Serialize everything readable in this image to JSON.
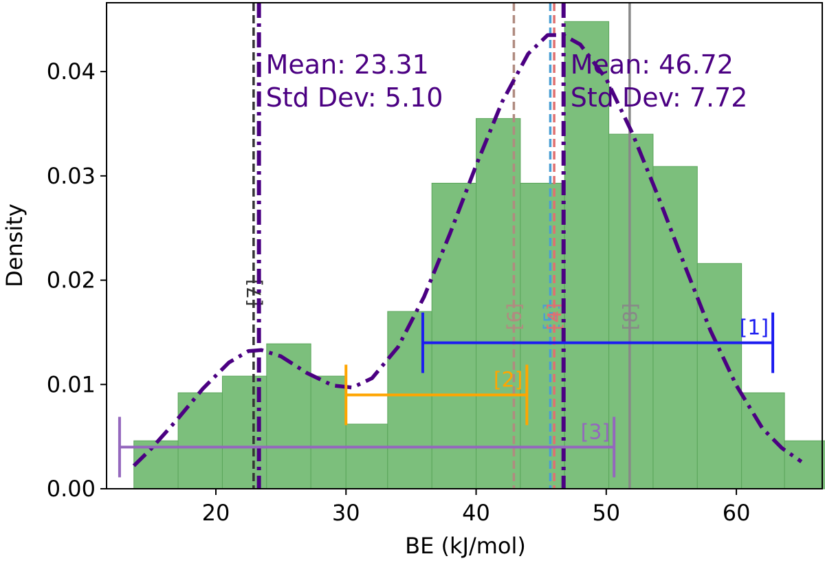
{
  "chart_data": {
    "type": "bar",
    "xlabel": "BE (kJ/mol)",
    "ylabel": "Density",
    "xlim": [
      11.6,
      66.6
    ],
    "ylim": [
      0,
      0.0466
    ],
    "x_ticks": [
      20,
      30,
      40,
      50,
      60
    ],
    "y_ticks": [
      0.0,
      0.01,
      0.02,
      0.03,
      0.04
    ],
    "y_tick_labels": [
      "0.00",
      "0.01",
      "0.02",
      "0.03",
      "0.04"
    ],
    "grid": false,
    "histogram": {
      "color": "#7cbf7c",
      "edge_color": "#5aa55a",
      "bin_edges": [
        13.7,
        17.1,
        20.5,
        23.9,
        27.3,
        30.0,
        33.2,
        36.6,
        40.0,
        43.4,
        46.8,
        50.2,
        53.6,
        57.0,
        60.4,
        63.7,
        67.1
      ],
      "values": [
        0.0046,
        0.0092,
        0.0108,
        0.0139,
        0.0108,
        0.0062,
        0.017,
        0.0293,
        0.0355,
        0.0293,
        0.0448,
        0.034,
        0.0309,
        0.0216,
        0.0092,
        0.0046
      ]
    },
    "kde": {
      "color": "#4b0082",
      "x": [
        13.7,
        15,
        17,
        19,
        21,
        22.5,
        23.5,
        25,
        27,
        29,
        30.5,
        32,
        34,
        36,
        38,
        40,
        42,
        44,
        45.5,
        46.7,
        48,
        50,
        52,
        54,
        56,
        58,
        60,
        62,
        63.5,
        65
      ],
      "y": [
        0.0022,
        0.0038,
        0.0066,
        0.0096,
        0.0121,
        0.0132,
        0.0133,
        0.0127,
        0.0111,
        0.0099,
        0.0097,
        0.0106,
        0.0136,
        0.0184,
        0.0245,
        0.031,
        0.0371,
        0.0417,
        0.0435,
        0.0435,
        0.0426,
        0.0393,
        0.0341,
        0.028,
        0.0215,
        0.0152,
        0.0099,
        0.0058,
        0.0039,
        0.0026
      ]
    },
    "mean_lines": [
      {
        "x": 23.31,
        "label_mean": "Mean: 23.31",
        "label_std": "Std Dev: 5.10",
        "color": "#4b0082"
      },
      {
        "x": 46.72,
        "label_mean": "Mean: 46.72",
        "label_std": "Std Dev: 7.72",
        "color": "#4b0082"
      }
    ],
    "reference_lines": [
      {
        "label": "[7]",
        "x": 22.9,
        "color": "#333333",
        "style": "dashed",
        "label_y": 0.0188
      },
      {
        "label": "[6]",
        "x": 42.9,
        "color": "#b08b80",
        "style": "dashed",
        "label_y": 0.0165
      },
      {
        "label": "[5]",
        "x": 45.7,
        "color": "#4a9fd4",
        "style": "dashed",
        "label_y": 0.0165
      },
      {
        "label": "[4]",
        "x": 46.0,
        "color": "#e07070",
        "style": "dashed",
        "label_y": 0.0165
      },
      {
        "label": "[8]",
        "x": 51.8,
        "color": "#888888",
        "style": "solid",
        "label_y": 0.0165
      }
    ],
    "error_bars": [
      {
        "label": "[1]",
        "xmin": 35.9,
        "xmax": 62.8,
        "y": 0.014,
        "color": "#1c1cf0"
      },
      {
        "label": "[2]",
        "xmin": 30.0,
        "xmax": 43.9,
        "y": 0.009,
        "color": "#ffa500"
      },
      {
        "label": "[3]",
        "xmin": 12.6,
        "xmax": 50.6,
        "y": 0.004,
        "color": "#9467bd"
      }
    ]
  }
}
